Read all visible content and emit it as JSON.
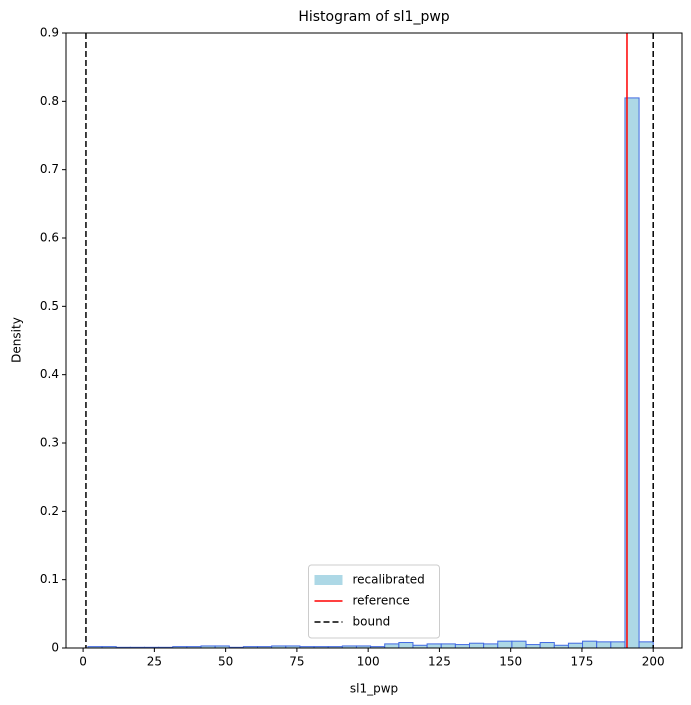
{
  "chart_data": {
    "type": "histogram",
    "title": "Histogram of sl1_pwp",
    "xlabel": "sl1_pwp",
    "ylabel": "Density",
    "bins": [
      1.7,
      6.66,
      11.62,
      16.57,
      21.53,
      26.49,
      31.45,
      36.4,
      41.36,
      46.32,
      51.28,
      56.23,
      61.19,
      66.15,
      71.11,
      76.06,
      81.02,
      85.98,
      90.94,
      95.89,
      100.85,
      105.81,
      110.77,
      115.72,
      120.68,
      125.64,
      130.6,
      135.55,
      140.51,
      145.47,
      150.43,
      155.38,
      160.34,
      165.3,
      170.26,
      175.21,
      180.17,
      185.13,
      190.09,
      195.04,
      200.0
    ],
    "series": [
      {
        "name": "recalibrated",
        "color": "#add8e6",
        "edgecolor": "#4169e1",
        "values": [
          0.002,
          0.002,
          0.001,
          0.001,
          0.001,
          0.001,
          0.002,
          0.002,
          0.003,
          0.003,
          0.001,
          0.002,
          0.002,
          0.003,
          0.003,
          0.002,
          0.002,
          0.002,
          0.003,
          0.003,
          0.002,
          0.006,
          0.008,
          0.004,
          0.006,
          0.006,
          0.005,
          0.007,
          0.006,
          0.01,
          0.01,
          0.005,
          0.008,
          0.004,
          0.007,
          0.01,
          0.009,
          0.009,
          0.805,
          0.009
        ]
      }
    ],
    "lines": [
      {
        "name": "reference",
        "x": [
          190.8
        ],
        "color": "#ff0000",
        "dashed": false
      },
      {
        "name": "bound",
        "x": [
          1,
          200
        ],
        "color": "#000000",
        "dashed": true
      }
    ],
    "xlim": [
      -6,
      210.1
    ],
    "xticks": [
      0,
      25,
      50,
      75,
      100,
      125,
      150,
      175,
      200
    ],
    "ylim": [
      0,
      0.9
    ],
    "yticks": [
      0.0,
      0.1,
      0.2,
      0.3,
      0.4,
      0.5,
      0.6,
      0.7,
      0.8,
      0.9
    ],
    "legend": "lower center"
  }
}
